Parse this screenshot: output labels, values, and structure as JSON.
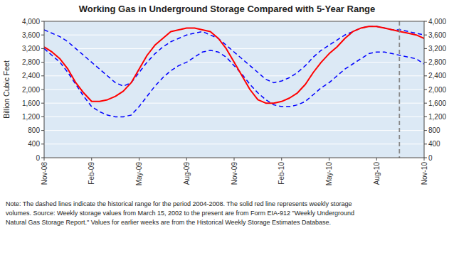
{
  "chart_data": {
    "type": "line",
    "title": "Working Gas in Underground Storage Compared with 5-Year Range",
    "y_label": "Billion Cubic Feet",
    "note": "Note:   The dashed lines indicate the historical range for the period 2004-2008.  The solid red line represents weekly storage\nvolumes.  Source:  Weekly storage values from March 15, 2002 to the present are from Form EIA-912 \"Weekly Underground\nNatural Gas Storage Report.\"  Values for earlier weeks are from the Historical Weekly Storage Estimates Database.",
    "color": "#dce9f5",
    "categories": [
      "Nov-08",
      null,
      null,
      null,
      null,
      null,
      "Feb-09",
      null,
      null,
      null,
      null,
      null,
      "May-09",
      null,
      null,
      null,
      null,
      null,
      "Aug-09",
      null,
      null,
      null,
      null,
      null,
      "Nov-09",
      null,
      null,
      null,
      null,
      null,
      "Feb-10",
      null,
      null,
      null,
      null,
      null,
      "May-10",
      null,
      null,
      null,
      null,
      null,
      "Aug-10",
      null,
      null,
      null,
      null,
      null,
      "Nov-10"
    ],
    "series": [
      {
        "color": "red",
        "line_style": "solid",
        "values": [
          3250,
          3100,
          2900,
          2600,
          2200,
          1900,
          1650,
          1650,
          1700,
          1800,
          1950,
          2200,
          2600,
          3000,
          3300,
          3500,
          3700,
          3750,
          3800,
          3800,
          3750,
          3700,
          3500,
          3200,
          2800,
          2400,
          2000,
          1700,
          1600,
          1600,
          1650,
          1750,
          1900,
          2150,
          2500,
          2800,
          3050,
          3250,
          3500,
          3700,
          3800,
          3850,
          3850,
          3800,
          3750,
          3700,
          3650,
          3600,
          3500
        ]
      },
      {
        "color": "blue",
        "line_style": "dashed",
        "values": [
          3750,
          3650,
          3550,
          3400,
          3200,
          3000,
          2800,
          2600,
          2400,
          2200,
          2100,
          2200,
          2500,
          2800,
          3050,
          3250,
          3400,
          3500,
          3600,
          3650,
          3700,
          3600,
          3500,
          3300,
          3100,
          2900,
          2700,
          2500,
          2300,
          2200,
          2250,
          2350,
          2500,
          2700,
          2950,
          3150,
          3300,
          3450,
          3600,
          3700,
          3800,
          3850,
          3850,
          3800,
          3750,
          3750,
          3700,
          3650,
          3600
        ]
      },
      {
        "color": "blue",
        "line_style": "dashed",
        "values": [
          3200,
          3000,
          2800,
          2500,
          2150,
          1800,
          1500,
          1350,
          1250,
          1200,
          1200,
          1250,
          1500,
          1800,
          2100,
          2350,
          2550,
          2700,
          2800,
          2950,
          3100,
          3150,
          3100,
          2950,
          2700,
          2450,
          2150,
          1900,
          1700,
          1550,
          1500,
          1500,
          1550,
          1650,
          1850,
          2050,
          2200,
          2400,
          2600,
          2750,
          2900,
          3050,
          3100,
          3100,
          3050,
          3000,
          2950,
          2900,
          2750
        ]
      }
    ],
    "separator": {
      "x": 44.88,
      "color": "#888888",
      "line_style": "dashed"
    },
    "ylim": [
      0,
      4000
    ],
    "yticks": [
      0,
      400,
      800,
      {
        "value": 1200,
        "label": "1,200"
      },
      {
        "value": 1600,
        "label": "1,600"
      },
      {
        "value": 2000,
        "label": "2,000"
      },
      {
        "value": 2400,
        "label": "2,400"
      },
      {
        "value": 2800,
        "label": "2,800"
      },
      {
        "value": 3200,
        "label": "3,200"
      },
      {
        "value": 3600,
        "label": "3,600"
      },
      {
        "value": 4000,
        "label": "4,000"
      }
    ],
    "y2lim": [
      0,
      4000
    ],
    "y2ticks": [
      0,
      400,
      800,
      {
        "value": 1200,
        "label": "1,200"
      },
      {
        "value": 1600,
        "label": "1,600"
      },
      {
        "value": 2000,
        "label": "2,000"
      },
      {
        "value": 2400,
        "label": "2,400"
      },
      {
        "value": 2800,
        "label": "2,800"
      },
      {
        "value": 3200,
        "label": "3,200"
      },
      {
        "value": 3600,
        "label": "3,600"
      },
      {
        "value": 4000,
        "label": "4,000"
      }
    ]
  }
}
